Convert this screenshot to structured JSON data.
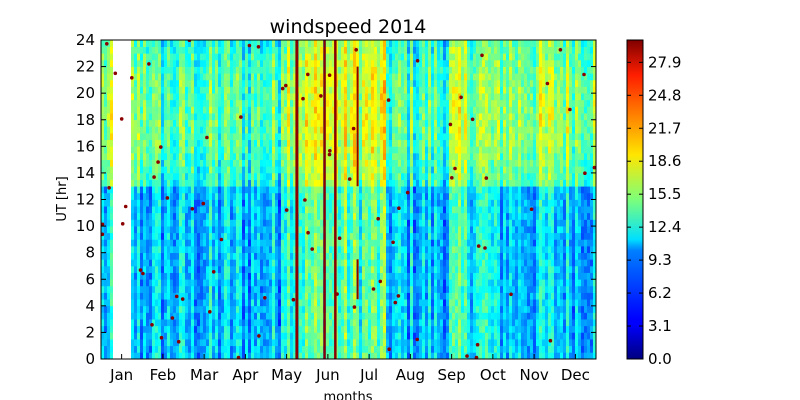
{
  "chart_data": {
    "type": "heatmap",
    "title": "windspeed 2014",
    "xlabel": "months",
    "ylabel": "UT [hr]",
    "x_tick_labels": [
      "Jan",
      "Feb",
      "Mar",
      "Apr",
      "May",
      "Jun",
      "Jul",
      "Aug",
      "Sep",
      "Oct",
      "Nov",
      "Dec"
    ],
    "y_ticks": [
      0,
      2,
      4,
      6,
      8,
      10,
      12,
      14,
      16,
      18,
      20,
      22,
      24
    ],
    "ylim": [
      0,
      24
    ],
    "colorbar": {
      "ticks": [
        "0.0",
        "3.1",
        "6.2",
        "9.3",
        "12.4",
        "15.5",
        "18.6",
        "21.7",
        "24.8",
        "27.9"
      ],
      "range": [
        0,
        30
      ],
      "colormap": "jet"
    },
    "grid": false
  }
}
